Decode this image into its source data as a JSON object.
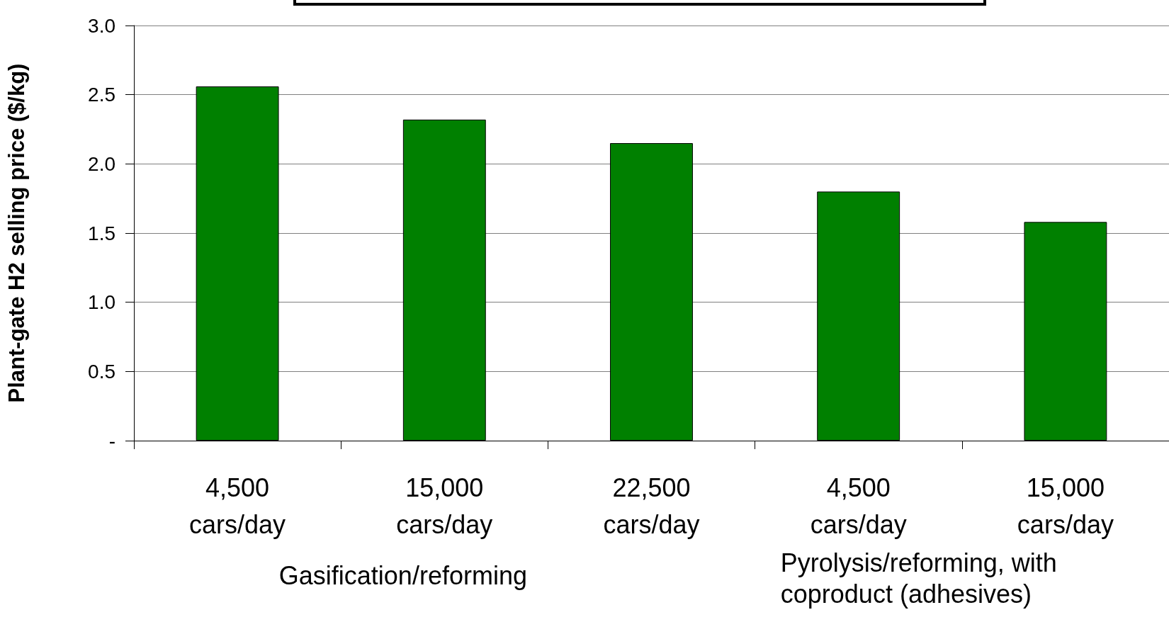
{
  "chart_data": {
    "type": "bar",
    "ylabel": "Plant-gate H2 selling price ($/kg)",
    "categories": [
      "4,500 cars/day",
      "15,000 cars/day",
      "22,500 cars/day",
      "4,500 cars/day",
      "15,000 cars/day"
    ],
    "values": [
      2.56,
      2.32,
      2.15,
      1.8,
      1.58
    ],
    "color": "#008000",
    "ylim": [
      0,
      3
    ],
    "yticks": [
      {
        "value": 0,
        "label": "-"
      },
      {
        "value": 0.5,
        "label": "0.5"
      },
      {
        "value": 1,
        "label": "1.0"
      },
      {
        "value": 1.5,
        "label": "1.5"
      },
      {
        "value": 2,
        "label": "2.0"
      },
      {
        "value": 2.5,
        "label": "2.5"
      },
      {
        "value": 3,
        "label": "3.0"
      }
    ],
    "grid": "y",
    "annotations": [
      "Gasification/reforming",
      "Pyrolysis/reforming, with coproduct (adhesives)"
    ]
  }
}
